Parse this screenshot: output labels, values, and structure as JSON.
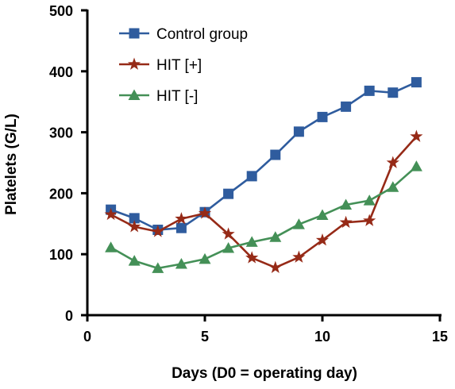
{
  "chart_data": {
    "type": "line",
    "title": "",
    "xlabel": "Days (D0 = operating day)",
    "ylabel": "Platelets (G/L)",
    "xlim": [
      0,
      15
    ],
    "ylim": [
      0,
      500
    ],
    "xticks": [
      0,
      5,
      10,
      15
    ],
    "yticks": [
      0,
      100,
      200,
      300,
      400,
      500
    ],
    "grid": false,
    "legend": "top-left",
    "x": [
      1,
      2,
      3,
      4,
      5,
      6,
      7,
      8,
      9,
      10,
      11,
      12,
      13,
      14
    ],
    "series": [
      {
        "name": "Control group",
        "marker": "square",
        "color": "#2f5c9e",
        "values": [
          173,
          159,
          140,
          143,
          169,
          199,
          228,
          263,
          301,
          325,
          342,
          368,
          365,
          382
        ]
      },
      {
        "name": "HIT [+]",
        "marker": "star",
        "color": "#962a17",
        "values": [
          165,
          145,
          137,
          158,
          167,
          133,
          94,
          78,
          95,
          123,
          152,
          155,
          250,
          293
        ]
      },
      {
        "name": "HIT [-]",
        "marker": "triangle",
        "color": "#449057",
        "values": [
          111,
          89,
          77,
          84,
          92,
          110,
          120,
          128,
          149,
          164,
          181,
          188,
          210,
          244
        ]
      }
    ]
  }
}
